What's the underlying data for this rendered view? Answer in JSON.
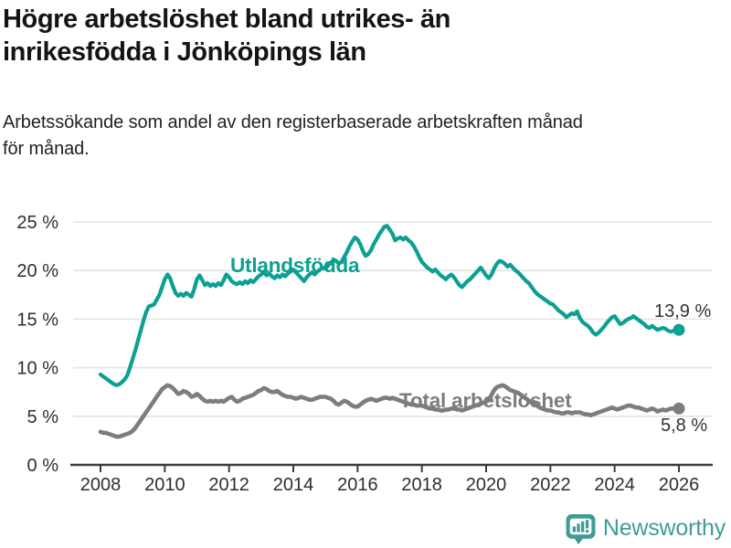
{
  "header": {
    "title_lines": [
      "Högre arbetslöshet bland utrikes- än",
      "inrikesfödda i Jönköpings län"
    ],
    "subtitle_lines": [
      "Arbetssökande som andel av den registerbaserade arbetskraften månad",
      "för månad."
    ]
  },
  "chart_data": {
    "type": "line",
    "title": "Högre arbetslöshet bland utrikes- än inrikesfödda i Jönköpings län",
    "subtitle": "Arbetssökande som andel av den registerbaserade arbetskraften månad för månad.",
    "x_unit": "monthly, decimal years",
    "x_start_year": 2008,
    "x_step_months": 1,
    "xlim": [
      2007.1,
      2027.0
    ],
    "ylim": [
      0,
      26.5
    ],
    "grid": "horizontal",
    "legend_position": "inline-labels",
    "y_ticks": [
      {
        "v": 0,
        "label": "0 %"
      },
      {
        "v": 5,
        "label": "5 %"
      },
      {
        "v": 10,
        "label": "10 %"
      },
      {
        "v": 15,
        "label": "15 %"
      },
      {
        "v": 20,
        "label": "20 %"
      },
      {
        "v": 25,
        "label": "25 %"
      }
    ],
    "x_ticks": [
      {
        "v": 2008,
        "label": "2008"
      },
      {
        "v": 2010,
        "label": "2010"
      },
      {
        "v": 2012,
        "label": "2012"
      },
      {
        "v": 2014,
        "label": "2014"
      },
      {
        "v": 2016,
        "label": "2016"
      },
      {
        "v": 2018,
        "label": "2018"
      },
      {
        "v": 2020,
        "label": "2020"
      },
      {
        "v": 2022,
        "label": "2022"
      },
      {
        "v": 2024,
        "label": "2024"
      },
      {
        "v": 2026,
        "label": "2026"
      }
    ],
    "series": [
      {
        "name": "Utlandsfödda",
        "color": "#0ba091",
        "end_label": "13,9 %",
        "last_value": 13.9,
        "values": [
          9.3,
          9.1,
          8.9,
          8.7,
          8.5,
          8.3,
          8.2,
          8.3,
          8.5,
          8.8,
          9.2,
          10.0,
          10.9,
          11.8,
          12.8,
          13.8,
          14.8,
          15.7,
          16.3,
          16.4,
          16.5,
          17.0,
          17.5,
          18.3,
          19.1,
          19.6,
          19.2,
          18.4,
          17.7,
          17.4,
          17.6,
          17.4,
          17.7,
          17.5,
          17.3,
          18.1,
          19.1,
          19.5,
          19.0,
          18.5,
          18.7,
          18.4,
          18.6,
          18.4,
          18.7,
          18.5,
          19.0,
          19.6,
          19.3,
          18.9,
          18.7,
          18.6,
          18.8,
          18.6,
          18.9,
          18.7,
          19.0,
          18.8,
          19.1,
          19.4,
          19.6,
          19.8,
          19.5,
          19.7,
          19.4,
          19.2,
          19.5,
          19.3,
          19.6,
          19.4,
          19.7,
          19.9,
          20.1,
          19.8,
          19.5,
          19.2,
          18.9,
          19.3,
          19.6,
          19.8,
          19.6,
          19.9,
          20.1,
          20.3,
          20.2,
          20.5,
          20.8,
          21.1,
          21.0,
          20.7,
          20.9,
          21.4,
          21.9,
          22.5,
          23.0,
          23.4,
          23.2,
          22.7,
          22.0,
          21.5,
          21.7,
          22.1,
          22.7,
          23.2,
          23.7,
          24.1,
          24.5,
          24.6,
          24.2,
          23.8,
          23.1,
          23.3,
          23.4,
          23.2,
          23.4,
          23.1,
          22.9,
          22.5,
          22.0,
          21.4,
          20.9,
          20.6,
          20.3,
          20.1,
          19.9,
          20.1,
          19.8,
          19.5,
          19.3,
          19.1,
          19.4,
          19.6,
          19.3,
          18.9,
          18.5,
          18.3,
          18.6,
          18.9,
          19.1,
          19.4,
          19.7,
          20.0,
          20.3,
          19.9,
          19.5,
          19.2,
          19.6,
          20.2,
          20.7,
          21.0,
          20.9,
          20.7,
          20.4,
          20.6,
          20.3,
          20.0,
          19.8,
          19.5,
          19.2,
          18.9,
          18.7,
          18.3,
          17.9,
          17.6,
          17.4,
          17.2,
          17.0,
          16.8,
          16.6,
          16.5,
          16.2,
          15.9,
          15.7,
          15.5,
          15.2,
          15.4,
          15.6,
          15.5,
          15.8,
          15.1,
          14.7,
          14.5,
          14.3,
          14.0,
          13.6,
          13.4,
          13.6,
          13.9,
          14.2,
          14.6,
          14.9,
          15.2,
          15.3,
          14.9,
          14.5,
          14.6,
          14.8,
          15.0,
          15.1,
          15.3,
          15.1,
          14.9,
          14.7,
          14.5,
          14.2,
          14.1,
          14.3,
          14.1,
          13.9,
          14.0,
          14.1,
          14.0,
          13.8,
          13.7,
          13.8,
          13.8,
          13.9
        ]
      },
      {
        "name": "Total arbetslöshet",
        "color": "#7d7d7d",
        "end_label": "5,8 %",
        "last_value": 5.8,
        "values": [
          3.4,
          3.3,
          3.3,
          3.2,
          3.1,
          3.0,
          2.9,
          2.9,
          3.0,
          3.1,
          3.2,
          3.3,
          3.5,
          3.8,
          4.2,
          4.6,
          5.0,
          5.4,
          5.8,
          6.2,
          6.6,
          7.0,
          7.4,
          7.8,
          8.0,
          8.2,
          8.1,
          7.9,
          7.6,
          7.3,
          7.4,
          7.6,
          7.5,
          7.3,
          7.0,
          7.1,
          7.3,
          7.1,
          6.8,
          6.6,
          6.5,
          6.6,
          6.5,
          6.6,
          6.5,
          6.6,
          6.5,
          6.7,
          6.9,
          7.0,
          6.7,
          6.5,
          6.6,
          6.8,
          6.9,
          7.0,
          7.1,
          7.2,
          7.4,
          7.6,
          7.7,
          7.9,
          7.8,
          7.6,
          7.5,
          7.5,
          7.6,
          7.4,
          7.2,
          7.1,
          7.0,
          7.0,
          6.9,
          6.8,
          6.9,
          7.0,
          6.9,
          6.8,
          6.7,
          6.7,
          6.8,
          6.9,
          7.0,
          7.0,
          7.0,
          6.9,
          6.8,
          6.6,
          6.3,
          6.2,
          6.4,
          6.6,
          6.5,
          6.3,
          6.1,
          6.0,
          6.0,
          6.2,
          6.4,
          6.6,
          6.7,
          6.8,
          6.7,
          6.6,
          6.7,
          6.8,
          6.9,
          6.9,
          6.8,
          6.9,
          6.8,
          6.7,
          6.6,
          6.5,
          6.4,
          6.3,
          6.2,
          6.2,
          6.1,
          6.1,
          6.1,
          6.0,
          5.9,
          5.8,
          5.8,
          5.7,
          5.7,
          5.6,
          5.6,
          5.7,
          5.7,
          5.8,
          5.8,
          5.7,
          5.7,
          5.6,
          5.7,
          5.8,
          5.9,
          6.0,
          6.1,
          6.2,
          6.3,
          6.4,
          6.5,
          6.7,
          7.2,
          7.7,
          8.0,
          8.1,
          8.2,
          8.1,
          7.9,
          7.7,
          7.6,
          7.5,
          7.4,
          7.2,
          7.0,
          6.8,
          6.6,
          6.4,
          6.2,
          6.1,
          5.9,
          5.8,
          5.7,
          5.6,
          5.6,
          5.5,
          5.4,
          5.4,
          5.3,
          5.3,
          5.4,
          5.4,
          5.3,
          5.4,
          5.4,
          5.4,
          5.3,
          5.2,
          5.2,
          5.1,
          5.2,
          5.3,
          5.4,
          5.5,
          5.6,
          5.7,
          5.8,
          5.9,
          5.8,
          5.7,
          5.8,
          5.9,
          6.0,
          6.1,
          6.1,
          6.0,
          5.9,
          5.9,
          5.8,
          5.7,
          5.6,
          5.7,
          5.8,
          5.7,
          5.5,
          5.6,
          5.7,
          5.6,
          5.7,
          5.8,
          5.8,
          5.8,
          5.8
        ]
      }
    ],
    "colors": {
      "grid": "#e4e4e4",
      "axis": "#3c3c3c",
      "tick_text": "#2e2e2e",
      "end_label_text": "#333333"
    }
  },
  "footer": {
    "brand": "Newsworthy",
    "brand_color": "#3f9c94",
    "logo_icon": "bar-chart-speech-bubble-icon"
  }
}
